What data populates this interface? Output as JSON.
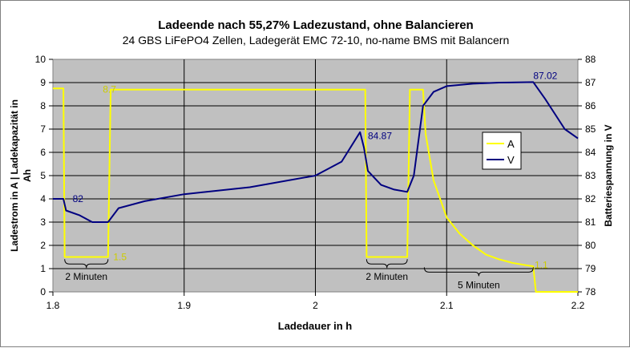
{
  "chart_data": {
    "type": "line",
    "title": "Ladeende nach 55,27% Ladezustand, ohne Balancieren",
    "subtitle": "24 GBS LiFePO4 Zellen, Ladegerät EMC 72-10, no-name BMS mit Balancern",
    "xlabel": "Ladedauer in h",
    "ylabel_left_line1": "Ladestrom in A  |  Ladekapazität in",
    "ylabel_left_line2": "Ah",
    "ylabel_right": "Batteriespannung in V",
    "xlim": [
      1.8,
      2.2
    ],
    "ylim_left": [
      0,
      10
    ],
    "ylim_right": [
      78,
      88
    ],
    "x_ticks": [
      "1.8",
      "1.9",
      "2",
      "2.1",
      "2.2"
    ],
    "y_ticks_left": [
      "0",
      "1",
      "2",
      "3",
      "4",
      "5",
      "6",
      "7",
      "8",
      "9",
      "10"
    ],
    "y_ticks_right": [
      "78",
      "79",
      "80",
      "81",
      "82",
      "83",
      "84",
      "85",
      "86",
      "87",
      "88"
    ],
    "grid": true,
    "legend_position": "right",
    "series": [
      {
        "name": "A",
        "axis": "left",
        "color": "#FFFF00",
        "points": [
          [
            1.8,
            8.75
          ],
          [
            1.808,
            8.75
          ],
          [
            1.809,
            1.5
          ],
          [
            1.842,
            1.5
          ],
          [
            1.844,
            8.7
          ],
          [
            2.038,
            8.7
          ],
          [
            2.039,
            1.5
          ],
          [
            2.07,
            1.5
          ],
          [
            2.072,
            8.7
          ],
          [
            2.082,
            8.7
          ],
          [
            2.084,
            6.8
          ],
          [
            2.09,
            4.8
          ],
          [
            2.1,
            3.2
          ],
          [
            2.11,
            2.5
          ],
          [
            2.12,
            2.0
          ],
          [
            2.13,
            1.6
          ],
          [
            2.14,
            1.4
          ],
          [
            2.15,
            1.25
          ],
          [
            2.16,
            1.15
          ],
          [
            2.166,
            1.1
          ],
          [
            2.168,
            0.0
          ],
          [
            2.2,
            0.0
          ]
        ]
      },
      {
        "name": "V",
        "axis": "right",
        "color": "#000080",
        "points": [
          [
            1.8,
            82.0
          ],
          [
            1.808,
            82.0
          ],
          [
            1.81,
            81.5
          ],
          [
            1.82,
            81.3
          ],
          [
            1.83,
            81.0
          ],
          [
            1.842,
            81.0
          ],
          [
            1.85,
            81.6
          ],
          [
            1.87,
            81.9
          ],
          [
            1.9,
            82.2
          ],
          [
            1.95,
            82.5
          ],
          [
            2.0,
            83.0
          ],
          [
            2.02,
            83.6
          ],
          [
            2.034,
            84.87
          ],
          [
            2.037,
            84.2
          ],
          [
            2.04,
            83.2
          ],
          [
            2.05,
            82.6
          ],
          [
            2.06,
            82.4
          ],
          [
            2.07,
            82.3
          ],
          [
            2.075,
            83.0
          ],
          [
            2.082,
            86.0
          ],
          [
            2.09,
            86.6
          ],
          [
            2.1,
            86.85
          ],
          [
            2.12,
            86.95
          ],
          [
            2.14,
            87.0
          ],
          [
            2.166,
            87.02
          ],
          [
            2.175,
            86.3
          ],
          [
            2.19,
            85.0
          ],
          [
            2.2,
            84.6
          ]
        ]
      }
    ],
    "annotations": [
      "8.7",
      "1.5",
      "82",
      "84.87",
      "87.02",
      "1.1",
      "2 Minuten",
      "2 Minuten",
      "5 Minuten"
    ],
    "annotation_points": [
      {
        "text": "8.7",
        "x": 1.838,
        "y": 8.7,
        "axis": "left",
        "color": "#CCCC00"
      },
      {
        "text": "1.5",
        "x": 1.846,
        "y": 1.5,
        "axis": "left",
        "color": "#CCCC00"
      },
      {
        "text": "82",
        "x": 1.815,
        "y": 82.0,
        "axis": "right",
        "color": "#000080"
      },
      {
        "text": "84.87",
        "x": 2.04,
        "y": 84.7,
        "axis": "right",
        "color": "#000080"
      },
      {
        "text": "87.02",
        "x": 2.166,
        "y": 87.3,
        "axis": "right",
        "color": "#000080"
      },
      {
        "text": "1.1",
        "x": 2.167,
        "y": 1.15,
        "axis": "left",
        "color": "#CCCC00"
      }
    ],
    "spans": [
      {
        "label": "2 Minuten",
        "x1": 1.809,
        "x2": 1.842,
        "y": 1.2
      },
      {
        "label": "2 Minuten",
        "x1": 2.039,
        "x2": 2.07,
        "y": 1.2
      },
      {
        "label": "5 Minuten",
        "x1": 2.083,
        "x2": 2.166,
        "y": 0.85
      }
    ]
  }
}
